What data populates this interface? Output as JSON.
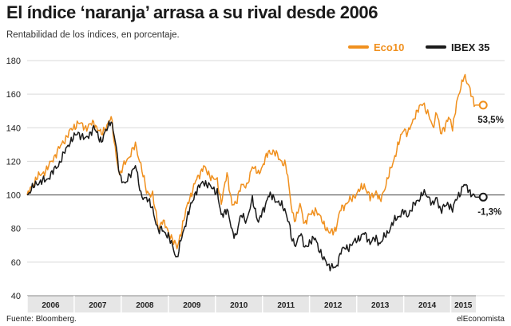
{
  "header": {
    "title": "El índice ‘naranja’ arrasa a su rival desde 2006",
    "subtitle": "Rentabilidad de los índices, en porcentaje."
  },
  "footer": {
    "source": "Fuente: Bloomberg.",
    "brand": "elEconomista"
  },
  "colors": {
    "eco10": "#f0901e",
    "ibex35": "#1a1a1a",
    "grid": "#d9d9d9",
    "baseline": "#555555",
    "axis_band": "#e6e6e6"
  },
  "chart_data": {
    "type": "line",
    "title": "El índice ‘naranja’ arrasa a su rival desde 2006",
    "subtitle": "Rentabilidad de los índices, en porcentaje.",
    "xlabel": "",
    "ylabel": "",
    "ylim": [
      40,
      180
    ],
    "xlim": [
      "2006-01-01",
      "2015-07-15"
    ],
    "yticks": [
      40,
      60,
      80,
      100,
      120,
      140,
      160,
      180
    ],
    "year_labels": [
      "2006",
      "2007",
      "2008",
      "2009",
      "2010",
      "2011",
      "2012",
      "2013",
      "2014",
      "2015"
    ],
    "grid": true,
    "legend_position": "top-right",
    "series": [
      {
        "name": "Eco10",
        "color": "#f0901e",
        "end_label": "53,5%",
        "points": [
          [
            "2006-01-01",
            100
          ],
          [
            "2006-03-15",
            110
          ],
          [
            "2006-06-01",
            115
          ],
          [
            "2006-09-01",
            127
          ],
          [
            "2006-12-01",
            138
          ],
          [
            "2007-02-01",
            143
          ],
          [
            "2007-04-01",
            140
          ],
          [
            "2007-06-01",
            143
          ],
          [
            "2007-08-01",
            136
          ],
          [
            "2007-10-15",
            146
          ],
          [
            "2007-11-15",
            128
          ],
          [
            "2007-12-20",
            111
          ],
          [
            "2008-02-01",
            120
          ],
          [
            "2008-03-15",
            124
          ],
          [
            "2008-04-20",
            130
          ],
          [
            "2008-06-01",
            118
          ],
          [
            "2008-07-15",
            102
          ],
          [
            "2008-09-01",
            100
          ],
          [
            "2008-10-15",
            80
          ],
          [
            "2008-11-15",
            85
          ],
          [
            "2008-12-31",
            78
          ],
          [
            "2009-02-01",
            74
          ],
          [
            "2009-03-09",
            68
          ],
          [
            "2009-04-15",
            80
          ],
          [
            "2009-06-01",
            95
          ],
          [
            "2009-08-01",
            108
          ],
          [
            "2009-10-01",
            117
          ],
          [
            "2009-11-01",
            113
          ],
          [
            "2010-01-15",
            108
          ],
          [
            "2010-02-15",
            96
          ],
          [
            "2010-04-01",
            112
          ],
          [
            "2010-05-10",
            95
          ],
          [
            "2010-06-10",
            94
          ],
          [
            "2010-07-20",
            107
          ],
          [
            "2010-09-01",
            104
          ],
          [
            "2010-10-15",
            118
          ],
          [
            "2010-12-01",
            112
          ],
          [
            "2011-01-15",
            120
          ],
          [
            "2011-02-15",
            125
          ],
          [
            "2011-04-01",
            126
          ],
          [
            "2011-05-15",
            121
          ],
          [
            "2011-07-01",
            118
          ],
          [
            "2011-07-25",
            105
          ],
          [
            "2011-08-20",
            90
          ],
          [
            "2011-09-15",
            85
          ],
          [
            "2011-10-20",
            94
          ],
          [
            "2011-11-25",
            83
          ],
          [
            "2012-01-01",
            88
          ],
          [
            "2012-02-15",
            91
          ],
          [
            "2012-04-15",
            84
          ],
          [
            "2012-06-01",
            77
          ],
          [
            "2012-07-24",
            80
          ],
          [
            "2012-09-01",
            92
          ],
          [
            "2012-11-01",
            96
          ],
          [
            "2013-01-15",
            102
          ],
          [
            "2013-03-01",
            106
          ],
          [
            "2013-04-15",
            98
          ],
          [
            "2013-06-01",
            102
          ],
          [
            "2013-07-01",
            96
          ],
          [
            "2013-09-01",
            110
          ],
          [
            "2013-11-01",
            125
          ],
          [
            "2014-01-01",
            140
          ],
          [
            "2014-02-01",
            136
          ],
          [
            "2014-04-01",
            148
          ],
          [
            "2014-06-01",
            155
          ],
          [
            "2014-07-15",
            147
          ],
          [
            "2014-08-15",
            140
          ],
          [
            "2014-09-15",
            150
          ],
          [
            "2014-10-15",
            136
          ],
          [
            "2014-12-15",
            146
          ],
          [
            "2015-01-15",
            140
          ],
          [
            "2015-02-15",
            155
          ],
          [
            "2015-03-20",
            163
          ],
          [
            "2015-04-15",
            172
          ],
          [
            "2015-05-15",
            166
          ],
          [
            "2015-06-15",
            158
          ],
          [
            "2015-07-10",
            153.5
          ]
        ]
      },
      {
        "name": "IBEX 35",
        "color": "#1a1a1a",
        "end_label": "-1,3%",
        "points": [
          [
            "2006-01-01",
            100
          ],
          [
            "2006-03-15",
            107
          ],
          [
            "2006-06-01",
            109
          ],
          [
            "2006-09-01",
            118
          ],
          [
            "2006-12-01",
            132
          ],
          [
            "2007-02-01",
            137
          ],
          [
            "2007-04-01",
            133
          ],
          [
            "2007-06-01",
            140
          ],
          [
            "2007-08-01",
            132
          ],
          [
            "2007-10-15",
            145
          ],
          [
            "2007-11-15",
            132
          ],
          [
            "2007-12-20",
            112
          ],
          [
            "2008-02-01",
            106
          ],
          [
            "2008-03-15",
            113
          ],
          [
            "2008-04-20",
            118
          ],
          [
            "2008-06-01",
            100
          ],
          [
            "2008-07-15",
            98
          ],
          [
            "2008-09-01",
            92
          ],
          [
            "2008-10-15",
            78
          ],
          [
            "2008-11-15",
            80
          ],
          [
            "2008-12-31",
            75
          ],
          [
            "2009-02-01",
            70
          ],
          [
            "2009-03-09",
            62
          ],
          [
            "2009-04-15",
            75
          ],
          [
            "2009-06-01",
            88
          ],
          [
            "2009-08-01",
            102
          ],
          [
            "2009-10-01",
            108
          ],
          [
            "2009-11-01",
            106
          ],
          [
            "2010-01-15",
            102
          ],
          [
            "2010-02-15",
            87
          ],
          [
            "2010-04-01",
            92
          ],
          [
            "2010-05-10",
            78
          ],
          [
            "2010-06-10",
            76
          ],
          [
            "2010-07-20",
            88
          ],
          [
            "2010-09-01",
            85
          ],
          [
            "2010-10-15",
            97
          ],
          [
            "2010-12-01",
            84
          ],
          [
            "2011-01-15",
            92
          ],
          [
            "2011-02-15",
            100
          ],
          [
            "2011-04-01",
            98
          ],
          [
            "2011-05-15",
            95
          ],
          [
            "2011-07-01",
            90
          ],
          [
            "2011-07-25",
            84
          ],
          [
            "2011-08-20",
            72
          ],
          [
            "2011-09-15",
            70
          ],
          [
            "2011-10-20",
            78
          ],
          [
            "2011-11-25",
            68
          ],
          [
            "2012-01-01",
            72
          ],
          [
            "2012-02-15",
            74
          ],
          [
            "2012-04-15",
            62
          ],
          [
            "2012-06-01",
            58
          ],
          [
            "2012-07-24",
            56
          ],
          [
            "2012-09-01",
            67
          ],
          [
            "2012-11-01",
            69
          ],
          [
            "2013-01-15",
            74
          ],
          [
            "2013-03-01",
            77
          ],
          [
            "2013-04-15",
            72
          ],
          [
            "2013-06-01",
            74
          ],
          [
            "2013-07-01",
            71
          ],
          [
            "2013-09-01",
            78
          ],
          [
            "2013-11-01",
            86
          ],
          [
            "2014-01-01",
            90
          ],
          [
            "2014-02-01",
            88
          ],
          [
            "2014-04-01",
            95
          ],
          [
            "2014-06-01",
            101
          ],
          [
            "2014-07-15",
            99
          ],
          [
            "2014-08-15",
            94
          ],
          [
            "2014-09-15",
            98
          ],
          [
            "2014-10-15",
            91
          ],
          [
            "2014-12-15",
            95
          ],
          [
            "2015-01-15",
            91
          ],
          [
            "2015-02-15",
            98
          ],
          [
            "2015-03-20",
            102
          ],
          [
            "2015-04-15",
            106
          ],
          [
            "2015-05-15",
            104
          ],
          [
            "2015-06-15",
            100
          ],
          [
            "2015-07-10",
            98.7
          ]
        ]
      }
    ]
  }
}
